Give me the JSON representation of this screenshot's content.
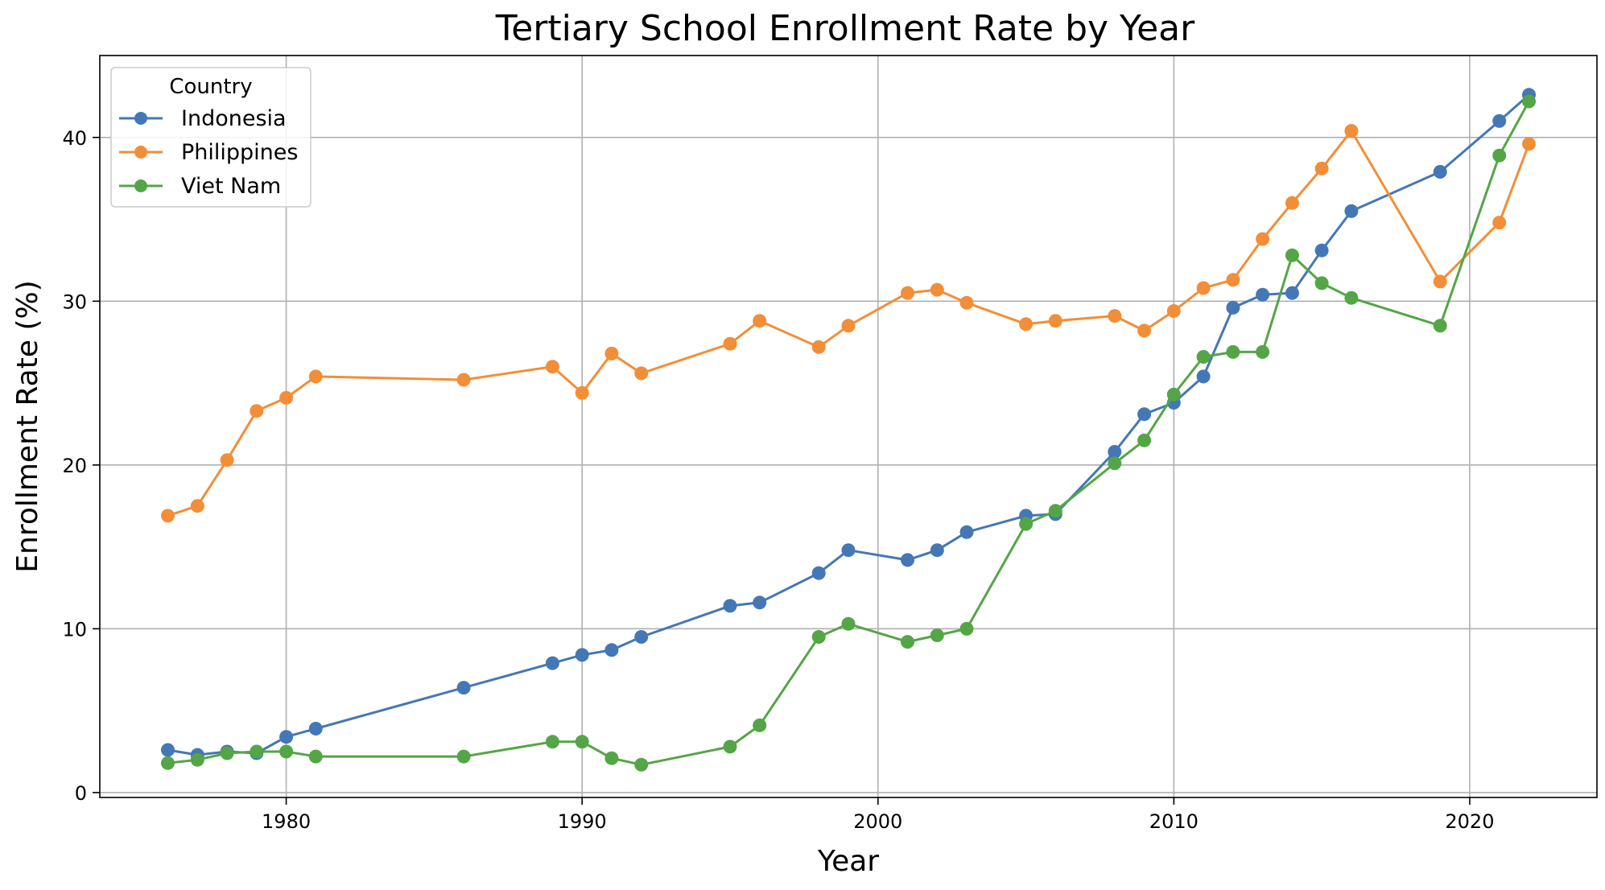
{
  "chart_data": {
    "type": "line",
    "title": "Tertiary School Enrollment Rate by Year",
    "xlabel": "Year",
    "ylabel": "Enrollment Rate (%)",
    "xlim": [
      1973.7,
      2024.3
    ],
    "ylim": [
      -0.3,
      45
    ],
    "xticks": [
      1980,
      1990,
      2000,
      2010,
      2020
    ],
    "yticks": [
      0,
      10,
      20,
      30,
      40
    ],
    "grid": true,
    "legend": {
      "title": "Country",
      "position": "top-left"
    },
    "series": [
      {
        "name": "Indonesia",
        "color": "#4477b5",
        "points": [
          [
            1976,
            2.6
          ],
          [
            1977,
            2.3
          ],
          [
            1978,
            2.5
          ],
          [
            1979,
            2.4
          ],
          [
            1980,
            3.4
          ],
          [
            1981,
            3.9
          ],
          [
            1986,
            6.4
          ],
          [
            1989,
            7.9
          ],
          [
            1990,
            8.4
          ],
          [
            1991,
            8.7
          ],
          [
            1992,
            9.5
          ],
          [
            1995,
            11.4
          ],
          [
            1996,
            11.6
          ],
          [
            1998,
            13.4
          ],
          [
            1999,
            14.8
          ],
          [
            2001,
            14.2
          ],
          [
            2002,
            14.8
          ],
          [
            2003,
            15.9
          ],
          [
            2005,
            16.9
          ],
          [
            2006,
            17.0
          ],
          [
            2008,
            20.8
          ],
          [
            2009,
            23.1
          ],
          [
            2010,
            23.8
          ],
          [
            2011,
            25.4
          ],
          [
            2012,
            29.6
          ],
          [
            2013,
            30.4
          ],
          [
            2014,
            30.5
          ],
          [
            2015,
            33.1
          ],
          [
            2016,
            35.5
          ],
          [
            2019,
            37.9
          ],
          [
            2021,
            41.0
          ],
          [
            2022,
            42.6
          ]
        ]
      },
      {
        "name": "Philippines",
        "color": "#f28e38",
        "points": [
          [
            1976,
            16.9
          ],
          [
            1977,
            17.5
          ],
          [
            1978,
            20.3
          ],
          [
            1979,
            23.3
          ],
          [
            1980,
            24.1
          ],
          [
            1981,
            25.4
          ],
          [
            1986,
            25.2
          ],
          [
            1989,
            26.0
          ],
          [
            1990,
            24.4
          ],
          [
            1991,
            26.8
          ],
          [
            1992,
            25.6
          ],
          [
            1995,
            27.4
          ],
          [
            1996,
            28.8
          ],
          [
            1998,
            27.2
          ],
          [
            1999,
            28.5
          ],
          [
            2001,
            30.5
          ],
          [
            2002,
            30.7
          ],
          [
            2003,
            29.9
          ],
          [
            2005,
            28.6
          ],
          [
            2006,
            28.8
          ],
          [
            2008,
            29.1
          ],
          [
            2009,
            28.2
          ],
          [
            2010,
            29.4
          ],
          [
            2011,
            30.8
          ],
          [
            2012,
            31.3
          ],
          [
            2013,
            33.8
          ],
          [
            2014,
            36.0
          ],
          [
            2015,
            38.1
          ],
          [
            2016,
            40.4
          ],
          [
            2019,
            31.2
          ],
          [
            2021,
            34.8
          ],
          [
            2022,
            39.6
          ]
        ]
      },
      {
        "name": "Viet Nam",
        "color": "#54a546",
        "points": [
          [
            1976,
            1.8
          ],
          [
            1977,
            2.0
          ],
          [
            1978,
            2.4
          ],
          [
            1979,
            2.5
          ],
          [
            1980,
            2.5
          ],
          [
            1981,
            2.2
          ],
          [
            1986,
            2.2
          ],
          [
            1989,
            3.1
          ],
          [
            1990,
            3.1
          ],
          [
            1991,
            2.1
          ],
          [
            1992,
            1.7
          ],
          [
            1995,
            2.8
          ],
          [
            1996,
            4.1
          ],
          [
            1998,
            9.5
          ],
          [
            1999,
            10.3
          ],
          [
            2001,
            9.2
          ],
          [
            2002,
            9.6
          ],
          [
            2003,
            10.0
          ],
          [
            2005,
            16.4
          ],
          [
            2006,
            17.2
          ],
          [
            2008,
            20.1
          ],
          [
            2009,
            21.5
          ],
          [
            2010,
            24.3
          ],
          [
            2011,
            26.6
          ],
          [
            2012,
            26.9
          ],
          [
            2013,
            26.9
          ],
          [
            2014,
            32.8
          ],
          [
            2015,
            31.1
          ],
          [
            2016,
            30.2
          ],
          [
            2019,
            28.5
          ],
          [
            2021,
            38.9
          ],
          [
            2022,
            42.2
          ]
        ]
      }
    ]
  }
}
